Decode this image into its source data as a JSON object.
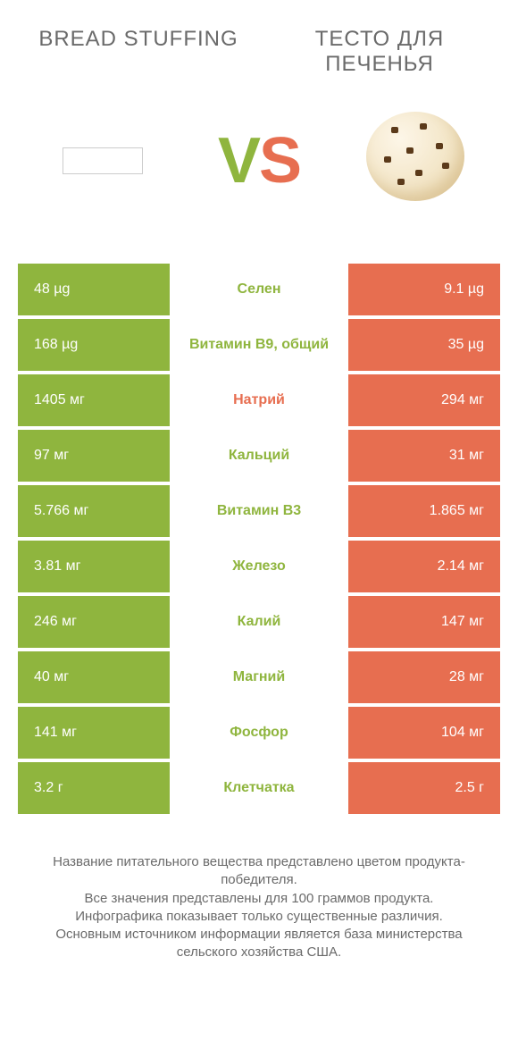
{
  "colors": {
    "left": "#8fb53e",
    "right": "#e76e50",
    "text": "#6a6a6a"
  },
  "header": {
    "left_title": "BREAD STUFFING",
    "right_title": "ТЕСТО ДЛЯ ПЕЧЕНЬЯ"
  },
  "vs": {
    "v": "V",
    "s": "S"
  },
  "rows": [
    {
      "left": "48 µg",
      "label": "Селен",
      "right": "9.1 µg",
      "winner": "left"
    },
    {
      "left": "168 µg",
      "label": "Витамин B9, общий",
      "right": "35 µg",
      "winner": "left"
    },
    {
      "left": "1405 мг",
      "label": "Натрий",
      "right": "294 мг",
      "winner": "right"
    },
    {
      "left": "97 мг",
      "label": "Кальций",
      "right": "31 мг",
      "winner": "left"
    },
    {
      "left": "5.766 мг",
      "label": "Витамин B3",
      "right": "1.865 мг",
      "winner": "left"
    },
    {
      "left": "3.81 мг",
      "label": "Железо",
      "right": "2.14 мг",
      "winner": "left"
    },
    {
      "left": "246 мг",
      "label": "Калий",
      "right": "147 мг",
      "winner": "left"
    },
    {
      "left": "40 мг",
      "label": "Магний",
      "right": "28 мг",
      "winner": "left"
    },
    {
      "left": "141 мг",
      "label": "Фосфор",
      "right": "104 мг",
      "winner": "left"
    },
    {
      "left": "3.2 г",
      "label": "Клетчатка",
      "right": "2.5 г",
      "winner": "left"
    }
  ],
  "footer": {
    "l1": "Название питательного вещества представлено цветом продукта-победителя.",
    "l2": "Все значения представлены для 100 граммов продукта.",
    "l3": "Инфографика показывает только существенные различия.",
    "l4": "Основным источником информации является база министерства сельского хозяйства США."
  }
}
